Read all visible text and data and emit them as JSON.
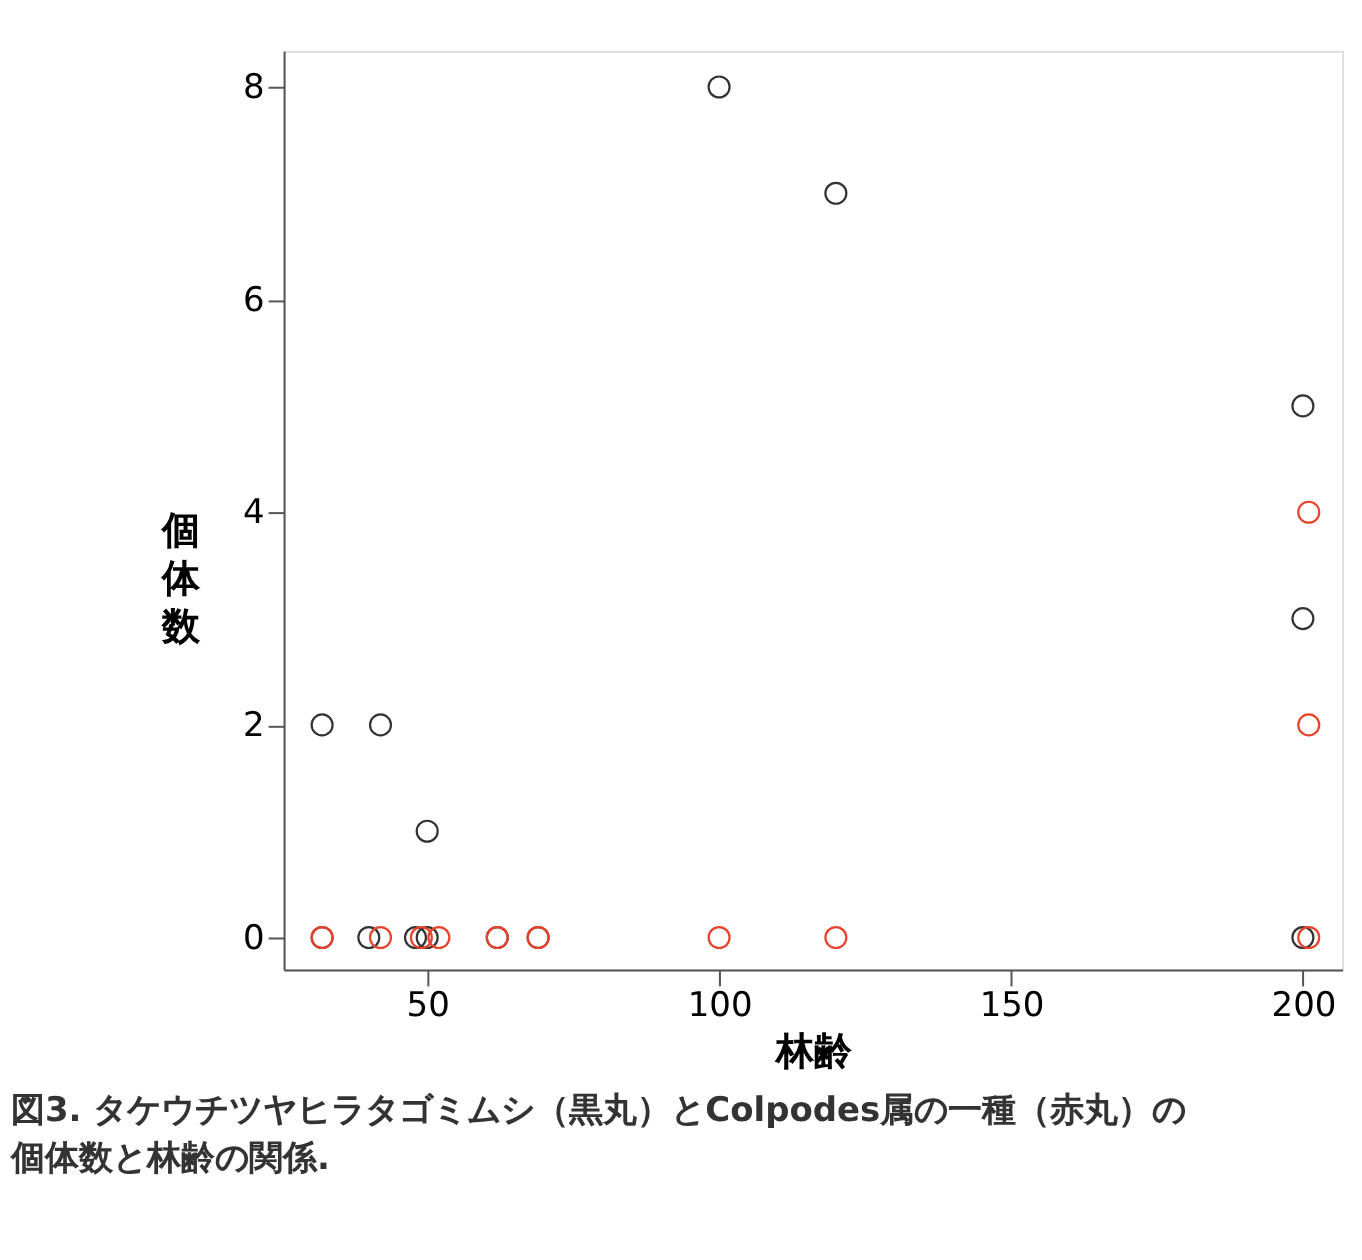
{
  "chart_data": {
    "type": "scatter",
    "xlabel": "林齢",
    "ylabel": "個体数",
    "annotations": [
      "図3. タケウチツヤヒラタゴミムシ（黒丸）とColpodes属の一種（赤丸）の個体数と林齢の関係."
    ],
    "series": [
      {
        "color": "#333333",
        "x": [
          32,
          42,
          50,
          100,
          120,
          200,
          200,
          32,
          40,
          48,
          50,
          62,
          69,
          200
        ],
        "values": [
          2,
          2,
          1,
          8,
          7,
          5,
          3,
          0,
          0,
          0,
          0,
          0,
          0,
          0
        ]
      },
      {
        "color": "#e8432a",
        "x": [
          201,
          201,
          32,
          42,
          49,
          52,
          62,
          69,
          100,
          120,
          201
        ],
        "values": [
          4,
          2,
          0,
          0,
          0,
          0,
          0,
          0,
          0,
          0,
          0
        ]
      }
    ],
    "xlim": [
      25.4,
      206.7
    ],
    "ylim": [
      -0.3,
      8.34
    ],
    "xticks": [
      50,
      100,
      150,
      200
    ],
    "yticks": [
      0,
      2,
      4,
      6,
      8
    ],
    "grid": false,
    "marker": "circle"
  }
}
